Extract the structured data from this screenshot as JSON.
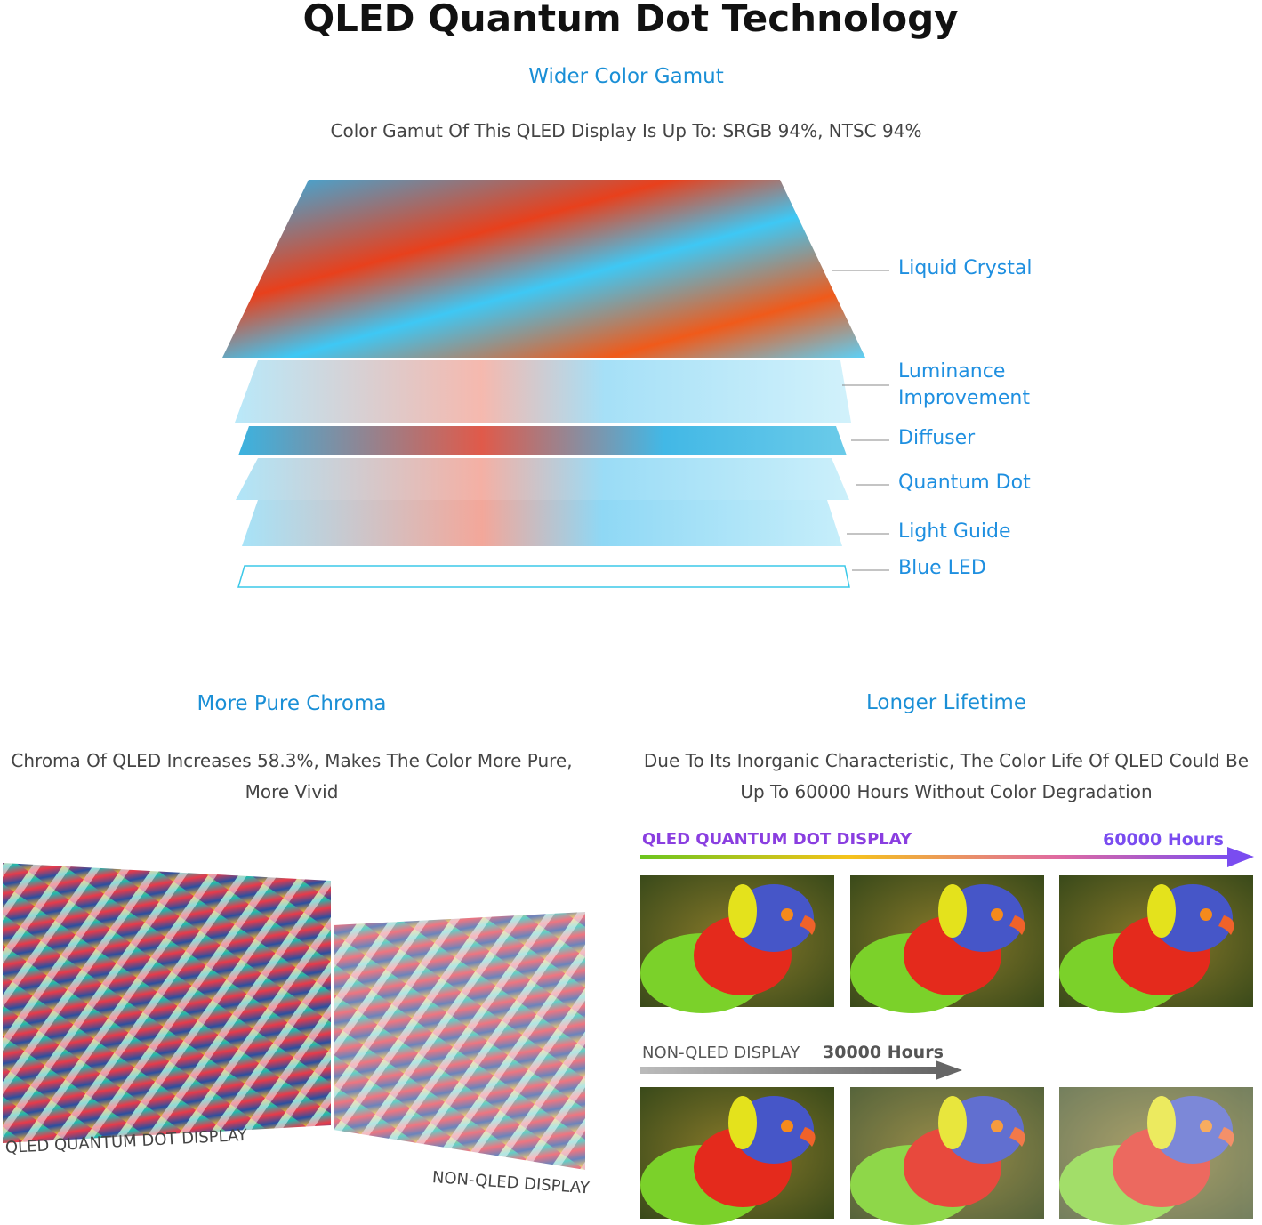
{
  "header": {
    "title": "QLED Quantum Dot Technology"
  },
  "gamut": {
    "heading": "Wider Color Gamut",
    "text": "Color Gamut Of This QLED Display Is Up To: SRGB 94%, NTSC 94%",
    "layers": [
      "Liquid Crystal",
      "Luminance Improvement",
      "Diffuser",
      "Quantum Dot",
      "Light Guide",
      "Blue LED"
    ]
  },
  "chroma": {
    "heading": "More Pure Chroma",
    "text": "Chroma Of QLED Increases 58.3%, Makes The Color More Pure, More Vivid",
    "labels": [
      "QLED QUANTUM DOT DISPLAY",
      "NON-QLED DISPLAY"
    ]
  },
  "lifetime": {
    "heading": "Longer Lifetime",
    "text": "Due To Its Inorganic Characteristic, The Color Life Of QLED Could Be Up To 60000 Hours Without Color Degradation",
    "rows": [
      {
        "label": "QLED QUANTUM DOT DISPLAY",
        "hours": "60000 Hours"
      },
      {
        "label": "NON-QLED DISPLAY",
        "hours": "30000 Hours"
      }
    ]
  }
}
